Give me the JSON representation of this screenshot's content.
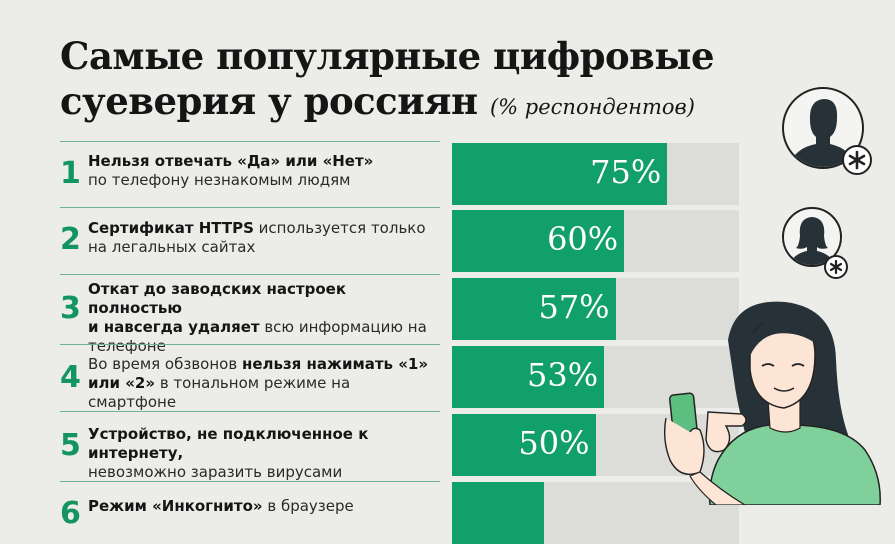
{
  "title": {
    "line1": "Самые популярные цифровые",
    "line2": "суеверия у россиян",
    "subtitle": "(% респондентов)"
  },
  "chart_data": {
    "type": "bar",
    "orientation": "horizontal",
    "ylim": [
      0,
      100
    ],
    "categories": [
      "Нельзя отвечать «Да» или «Нет» по телефону незнакомым людям",
      "Сертификат HTTPS используется только на легальных сайтах",
      "Откат до заводских настроек полностью и навсегда удаляет всю информацию на телефоне",
      "Во время обзвонов нельзя нажимать «1» или «2» в тональном режиме на смартфоне",
      "Устройство, не подключенное к интернету, невозможно заразить вирусами",
      "Режим «Инкогнито» в браузере"
    ],
    "values": [
      75,
      60,
      57,
      53,
      50,
      32
    ],
    "value_labels": [
      "75%",
      "60%",
      "57%",
      "53%",
      "50%",
      ""
    ]
  },
  "items": [
    {
      "rank": "1",
      "bold1": "Нельзя отвечать «Да» или «Нет»",
      "rest1": "",
      "bold2": "",
      "rest2": "по телефону незнакомым людям"
    },
    {
      "rank": "2",
      "bold1": "Сертификат HTTPS",
      "rest1": " используется только",
      "bold2": "",
      "rest2": "на легальных сайтах"
    },
    {
      "rank": "3",
      "bold1": "Откат до заводских настроек полностью",
      "rest1": "",
      "bold2": "и навсегда удаляет",
      "rest2": " всю информацию на телефоне"
    },
    {
      "rank": "4",
      "bold1": "",
      "rest1": "Во время обзвонов ",
      "bold2": "нельзя нажимать «1» или «2»",
      "rest2": " в тональном режиме на смартфоне"
    },
    {
      "rank": "5",
      "bold1": "Устройство, не подключенное к интернету,",
      "rest1": "",
      "bold2": "",
      "rest2": "невозможно заразить вирусами"
    },
    {
      "rank": "6",
      "bold1": "Режим «Инкогнито»",
      "rest1": " в браузере",
      "bold2": "",
      "rest2": ""
    }
  ],
  "colors": {
    "accent": "#12a06a",
    "track": "#dcdcd9",
    "rank": "#12955f",
    "background": "#ecece9"
  },
  "icons": [
    "male-avatar-icon",
    "female-avatar-icon",
    "asterisk-icon",
    "woman-with-phone-illustration"
  ]
}
